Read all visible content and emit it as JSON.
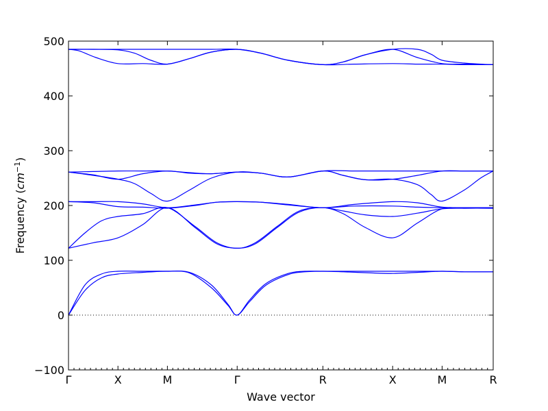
{
  "chart_data": {
    "type": "line",
    "title": "",
    "xlabel": "Wave vector",
    "ylabel_prefix": "Frequency (",
    "ylabel_unit": "cm",
    "ylabel_exp": "−1",
    "ylabel_suffix": ")",
    "ylim": [
      -100,
      500
    ],
    "yticks": [
      -100,
      0,
      100,
      200,
      300,
      400,
      500
    ],
    "xlim": [
      0,
      7.73
    ],
    "high_symmetry_points": [
      {
        "label": "Γ",
        "x": 0
      },
      {
        "label": "X",
        "x": 0.9
      },
      {
        "label": "M",
        "x": 1.8
      },
      {
        "label": "Γ",
        "x": 3.07
      },
      {
        "label": "R",
        "x": 4.63
      },
      {
        "label": "X",
        "x": 5.9
      },
      {
        "label": "M",
        "x": 6.8
      },
      {
        "label": "R",
        "x": 7.73
      }
    ],
    "zero_line": true,
    "grid": false,
    "line_color": "#0000ff",
    "series": [
      {
        "x": [
          0,
          0.3,
          0.6,
          0.9,
          1.35,
          1.8,
          2.2,
          2.6,
          2.9,
          3.07,
          3.3,
          3.6,
          4.0,
          4.3,
          4.63,
          5.0,
          5.5,
          5.9,
          6.35,
          6.8,
          7.2,
          7.73
        ],
        "y": [
          0,
          45,
          68,
          75,
          78,
          80,
          77,
          50,
          18,
          0,
          25,
          55,
          74,
          79,
          80,
          79,
          77,
          76,
          78,
          80,
          79,
          79
        ]
      },
      {
        "x": [
          0,
          0.3,
          0.6,
          0.9,
          1.35,
          1.8,
          2.2,
          2.6,
          2.9,
          3.07,
          3.3,
          3.6,
          4.0,
          4.3,
          4.63,
          5.0,
          5.5,
          5.9,
          6.35,
          6.8,
          7.2,
          7.73
        ],
        "y": [
          0,
          55,
          75,
          80,
          80,
          80,
          78,
          55,
          20,
          0,
          28,
          58,
          76,
          80,
          80,
          80,
          80,
          80,
          80,
          80,
          79,
          79
        ]
      },
      {
        "x": [
          0,
          0.45,
          0.9,
          1.35,
          1.8,
          2.3,
          2.7,
          3.07,
          3.4,
          3.8,
          4.2,
          4.63,
          5.0,
          5.4,
          5.9,
          6.35,
          6.8,
          7.2,
          7.73
        ],
        "y": [
          122,
          132,
          141,
          165,
          196,
          160,
          130,
          122,
          130,
          160,
          188,
          196,
          185,
          160,
          141,
          168,
          194,
          195,
          195
        ]
      },
      {
        "x": [
          0,
          0.3,
          0.6,
          0.9,
          1.35,
          1.8,
          2.3,
          2.7,
          3.07,
          3.4,
          3.8,
          4.2,
          4.63,
          5.0,
          5.4,
          5.9,
          6.35,
          6.8,
          7.2,
          7.73
        ],
        "y": [
          122,
          150,
          172,
          180,
          185,
          196,
          162,
          132,
          122,
          132,
          162,
          190,
          196,
          190,
          183,
          180,
          186,
          194,
          195,
          195
        ]
      },
      {
        "x": [
          0,
          0.45,
          0.9,
          1.35,
          1.8,
          2.3,
          2.7,
          3.07,
          3.5,
          4.0,
          4.63,
          5.2,
          5.9,
          6.35,
          6.8,
          7.2,
          7.73
        ],
        "y": [
          207,
          205,
          198,
          197,
          195,
          200,
          206,
          207,
          206,
          201,
          196,
          199,
          199,
          197,
          196,
          196,
          196
        ]
      },
      {
        "x": [
          0,
          0.45,
          0.9,
          1.35,
          1.8,
          2.3,
          2.7,
          3.07,
          3.5,
          4.0,
          4.63,
          5.2,
          5.9,
          6.35,
          6.8,
          7.2,
          7.73
        ],
        "y": [
          207,
          207,
          207,
          203,
          196,
          201,
          206,
          207,
          206,
          202,
          196,
          202,
          207,
          205,
          197,
          196,
          196
        ]
      },
      {
        "x": [
          0,
          0.45,
          0.9,
          1.2,
          1.5,
          1.8,
          2.2,
          2.6,
          3.07,
          3.5,
          4.0,
          4.63,
          5.0,
          5.4,
          5.9,
          6.35,
          6.6,
          6.8,
          7.2,
          7.5,
          7.73
        ],
        "y": [
          261,
          255,
          248,
          240,
          222,
          208,
          228,
          250,
          261,
          259,
          252,
          263,
          255,
          247,
          248,
          238,
          220,
          208,
          228,
          250,
          263
        ]
      },
      {
        "x": [
          0,
          0.45,
          0.9,
          1.35,
          1.8,
          2.2,
          2.6,
          3.07,
          3.5,
          4.0,
          4.63,
          5.0,
          5.4,
          5.9,
          6.35,
          6.8,
          7.2,
          7.73
        ],
        "y": [
          261,
          256,
          248,
          258,
          263,
          259,
          258,
          261,
          259,
          252,
          263,
          255,
          247,
          248,
          255,
          263,
          263,
          263
        ]
      },
      {
        "x": [
          0,
          0.45,
          0.9,
          1.35,
          1.8,
          2.2,
          2.6,
          3.07,
          3.5,
          4.0,
          4.63,
          5.2,
          5.9,
          6.35,
          6.8,
          7.2,
          7.73
        ],
        "y": [
          261,
          262,
          263,
          263,
          263,
          260,
          258,
          261,
          259,
          252,
          263,
          263,
          263,
          263,
          263,
          263,
          263
        ]
      },
      {
        "x": [
          0,
          0.2,
          0.5,
          0.9,
          1.35,
          1.8,
          2.2,
          2.6,
          3.07,
          3.5,
          4.0,
          4.63,
          5.0,
          5.4,
          5.9,
          6.35,
          6.8,
          7.2,
          7.73
        ],
        "y": [
          485,
          482,
          470,
          459,
          459,
          458,
          468,
          480,
          485,
          478,
          465,
          457,
          462,
          475,
          485,
          470,
          459,
          458,
          457
        ]
      },
      {
        "x": [
          0,
          0.45,
          0.9,
          1.2,
          1.5,
          1.8,
          2.2,
          2.6,
          3.07,
          3.5,
          4.0,
          4.63,
          5.0,
          5.4,
          5.9,
          6.35,
          6.6,
          6.8,
          7.2,
          7.5,
          7.73
        ],
        "y": [
          485,
          485,
          484,
          478,
          465,
          458,
          468,
          480,
          485,
          478,
          465,
          457,
          462,
          475,
          485,
          485,
          476,
          465,
          460,
          458,
          457
        ]
      },
      {
        "x": [
          0,
          0.45,
          0.9,
          1.35,
          1.8,
          2.2,
          2.6,
          3.07,
          3.5,
          4.0,
          4.63,
          5.2,
          5.9,
          6.35,
          6.8,
          7.2,
          7.73
        ],
        "y": [
          485,
          485,
          485,
          485,
          485,
          485,
          485,
          485,
          478,
          465,
          457,
          458,
          459,
          458,
          458,
          457,
          457
        ]
      }
    ]
  }
}
